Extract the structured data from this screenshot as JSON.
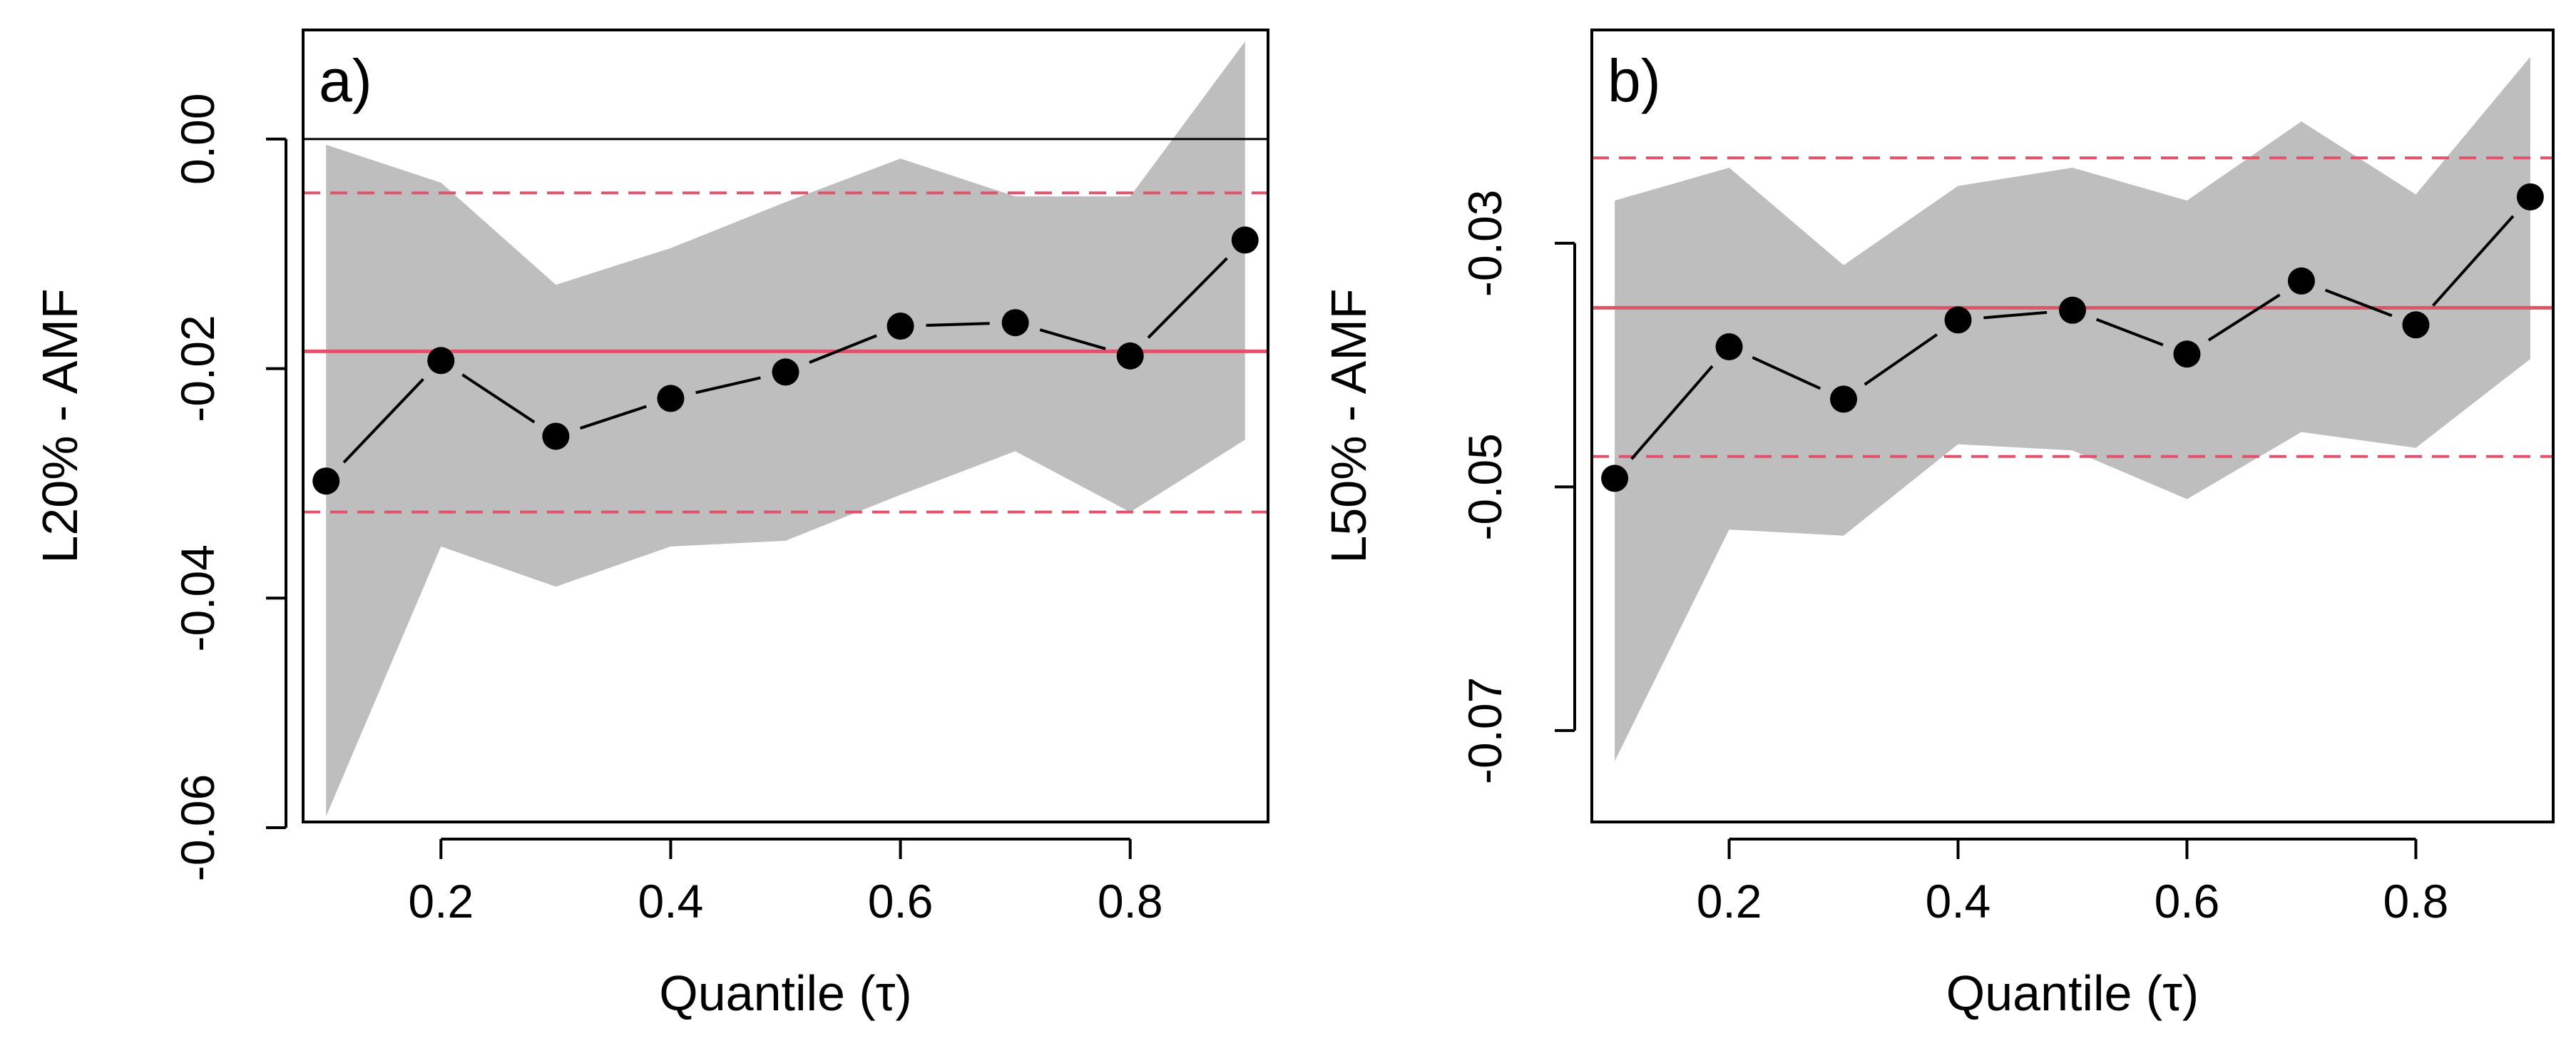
{
  "chart_data": [
    {
      "type": "line",
      "panel_label": "a)",
      "xlabel": "Quantile (τ)",
      "ylabel": "L20% - AMF",
      "xlim": [
        0.08,
        0.92
      ],
      "ylim": [
        -0.0595,
        0.0095
      ],
      "x_ticks": [
        0.2,
        0.4,
        0.6,
        0.8
      ],
      "x_tick_labels": [
        "0.2",
        "0.4",
        "0.6",
        "0.8"
      ],
      "y_ticks": [
        -0.06,
        -0.04,
        -0.02,
        0.0
      ],
      "y_tick_labels": [
        "-0.06",
        "-0.04",
        "-0.02",
        "0.00"
      ],
      "x": [
        0.1,
        0.2,
        0.3,
        0.4,
        0.5,
        0.6,
        0.7,
        0.8,
        0.9
      ],
      "values": [
        -0.0298,
        -0.0193,
        -0.0259,
        -0.0226,
        -0.0203,
        -0.0163,
        -0.016,
        -0.0189,
        -0.0088
      ],
      "ci_upper": [
        -0.0005,
        -0.0038,
        -0.0127,
        -0.0095,
        -0.0055,
        -0.0017,
        -0.005,
        -0.005,
        0.0085
      ],
      "ci_lower": [
        -0.059,
        -0.0355,
        -0.039,
        -0.0355,
        -0.035,
        -0.031,
        -0.0272,
        -0.0325,
        -0.0262
      ],
      "ols_estimate": -0.0185,
      "ols_ci": [
        -0.0325,
        -0.0047
      ],
      "zero_line": 0.0,
      "colors": {
        "band": "#bebebe",
        "points": "#000000",
        "ols": "#df536b",
        "zero": "#000000"
      }
    },
    {
      "type": "line",
      "panel_label": "b)",
      "xlabel": "Quantile (τ)",
      "ylabel": "L50% - AMF",
      "xlim": [
        0.08,
        0.92
      ],
      "ylim": [
        -0.0775,
        -0.0125
      ],
      "x_ticks": [
        0.2,
        0.4,
        0.6,
        0.8
      ],
      "x_tick_labels": [
        "0.2",
        "0.4",
        "0.6",
        "0.8"
      ],
      "y_ticks": [
        -0.07,
        -0.05,
        -0.03
      ],
      "y_tick_labels": [
        "-0.07",
        "-0.05",
        "-0.03"
      ],
      "x": [
        0.1,
        0.2,
        0.3,
        0.4,
        0.5,
        0.6,
        0.7,
        0.8,
        0.9
      ],
      "values": [
        -0.0493,
        -0.0385,
        -0.0428,
        -0.0363,
        -0.0355,
        -0.0391,
        -0.0331,
        -0.0367,
        -0.0262
      ],
      "ci_upper": [
        -0.0265,
        -0.0238,
        -0.0318,
        -0.0253,
        -0.0238,
        -0.0265,
        -0.02,
        -0.026,
        -0.0147
      ],
      "ci_lower": [
        -0.0725,
        -0.0535,
        -0.054,
        -0.0465,
        -0.047,
        -0.051,
        -0.0455,
        -0.0468,
        -0.0395
      ],
      "ols_estimate": -0.0353,
      "ols_ci": [
        -0.0475,
        -0.023
      ],
      "colors": {
        "band": "#bebebe",
        "points": "#000000",
        "ols": "#df536b"
      }
    }
  ]
}
